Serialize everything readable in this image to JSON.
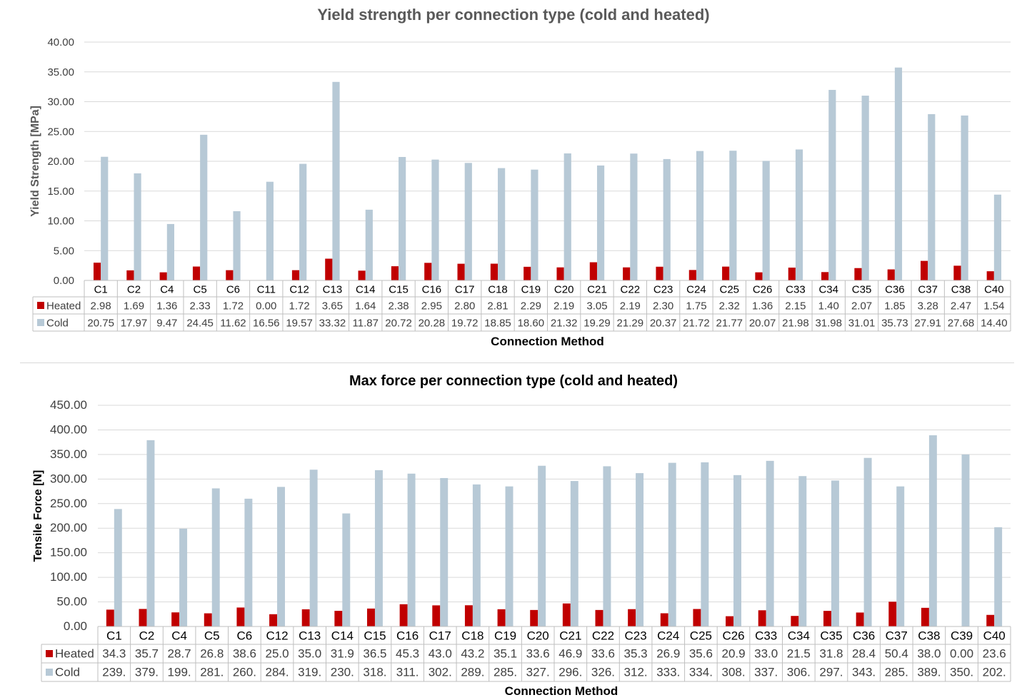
{
  "colors": {
    "heated": "#c00000",
    "cold": "#b7c9d6",
    "grid": "#d9d9d9",
    "table_border": "#bfbfbf"
  },
  "chart_data": [
    {
      "type": "bar",
      "title": "Yield strength per connection type (cold and heated)",
      "xlabel": "Connection Method",
      "ylabel": "Yield Strength [MPa]",
      "ylim": [
        0,
        40
      ],
      "ytick_step": 5,
      "ytick_labels": [
        "0.00",
        "5.00",
        "10.00",
        "15.00",
        "20.00",
        "25.00",
        "30.00",
        "35.00",
        "40.00"
      ],
      "grid": true,
      "legend_placement": "data-table",
      "categories": [
        "C1",
        "C2",
        "C4",
        "C5",
        "C6",
        "C11",
        "C12",
        "C13",
        "C14",
        "C15",
        "C16",
        "C17",
        "C18",
        "C19",
        "C20",
        "C21",
        "C22",
        "C23",
        "C24",
        "C25",
        "C26",
        "C33",
        "C34",
        "C35",
        "C36",
        "C37",
        "C38",
        "C40"
      ],
      "series": [
        {
          "name": "Heated",
          "color": "#c00000",
          "values": [
            2.98,
            1.69,
            1.36,
            2.33,
            1.72,
            0.0,
            1.72,
            3.65,
            1.64,
            2.38,
            2.95,
            2.8,
            2.81,
            2.29,
            2.19,
            3.05,
            2.19,
            2.3,
            1.75,
            2.32,
            1.36,
            2.15,
            1.4,
            2.07,
            1.85,
            3.28,
            2.47,
            1.54
          ],
          "table_text": [
            "2.98",
            "1.69",
            "1.36",
            "2.33",
            "1.72",
            "0.00",
            "1.72",
            "3.65",
            "1.64",
            "2.38",
            "2.95",
            "2.80",
            "2.81",
            "2.29",
            "2.19",
            "3.05",
            "2.19",
            "2.30",
            "1.75",
            "2.32",
            "1.36",
            "2.15",
            "1.40",
            "2.07",
            "1.85",
            "3.28",
            "2.47",
            "1.54"
          ]
        },
        {
          "name": "Cold",
          "color": "#b7c9d6",
          "values": [
            20.75,
            17.97,
            9.47,
            24.45,
            11.62,
            16.56,
            19.57,
            33.32,
            11.87,
            20.72,
            20.28,
            19.72,
            18.85,
            18.6,
            21.32,
            19.29,
            21.29,
            20.37,
            21.72,
            21.77,
            20.07,
            21.98,
            31.98,
            31.01,
            35.73,
            27.91,
            27.68,
            14.4
          ],
          "table_text": [
            "20.75",
            "17.97",
            "9.47",
            "24.45",
            "11.62",
            "16.56",
            "19.57",
            "33.32",
            "11.87",
            "20.72",
            "20.28",
            "19.72",
            "18.85",
            "18.60",
            "21.32",
            "19.29",
            "21.29",
            "20.37",
            "21.72",
            "21.77",
            "20.07",
            "21.98",
            "31.98",
            "31.01",
            "35.73",
            "27.91",
            "27.68",
            "14.40"
          ]
        }
      ]
    },
    {
      "type": "bar",
      "title": "Max force per connection type (cold and heated)",
      "xlabel": "Connection Method",
      "ylabel": "Tensile Force [N]",
      "ylim": [
        0,
        450
      ],
      "ytick_step": 50,
      "ytick_labels": [
        "0.00",
        "50.00",
        "100.00",
        "150.00",
        "200.00",
        "250.00",
        "300.00",
        "350.00",
        "400.00",
        "450.00"
      ],
      "grid": true,
      "legend_placement": "data-table",
      "categories": [
        "C1",
        "C2",
        "C4",
        "C5",
        "C6",
        "C12",
        "C13",
        "C14",
        "C15",
        "C16",
        "C17",
        "C18",
        "C19",
        "C20",
        "C21",
        "C22",
        "C23",
        "C24",
        "C25",
        "C26",
        "C33",
        "C34",
        "C35",
        "C36",
        "C37",
        "C38",
        "C39",
        "C40"
      ],
      "series": [
        {
          "name": "Heated",
          "color": "#c00000",
          "values": [
            34.3,
            35.7,
            28.7,
            26.8,
            38.6,
            25.0,
            35.0,
            31.9,
            36.5,
            45.3,
            43.0,
            43.2,
            35.1,
            33.6,
            46.9,
            33.6,
            35.3,
            26.9,
            35.6,
            20.9,
            33.0,
            21.5,
            31.8,
            28.4,
            50.4,
            38.0,
            0.0,
            23.6
          ],
          "table_text": [
            "34.3",
            "35.7",
            "28.7",
            "26.8",
            "38.6",
            "25.0",
            "35.0",
            "31.9",
            "36.5",
            "45.3",
            "43.0",
            "43.2",
            "35.1",
            "33.6",
            "46.9",
            "33.6",
            "35.3",
            "26.9",
            "35.6",
            "20.9",
            "33.0",
            "21.5",
            "31.8",
            "28.4",
            "50.4",
            "38.0",
            "0.00",
            "23.6"
          ]
        },
        {
          "name": "Cold",
          "color": "#b7c9d6",
          "values": [
            239,
            379,
            199,
            281,
            260,
            284,
            319,
            230,
            318,
            311,
            302,
            289,
            285,
            327,
            296,
            326,
            312,
            333,
            334,
            308,
            337,
            306,
            297,
            343,
            285,
            389,
            350,
            202
          ],
          "table_text": [
            "239.",
            "379.",
            "199.",
            "281.",
            "260.",
            "284.",
            "319.",
            "230.",
            "318.",
            "311.",
            "302.",
            "289.",
            "285.",
            "327.",
            "296.",
            "326.",
            "312.",
            "333.",
            "334.",
            "308.",
            "337.",
            "306.",
            "297.",
            "343.",
            "285.",
            "389.",
            "350.",
            "202."
          ]
        }
      ]
    }
  ]
}
